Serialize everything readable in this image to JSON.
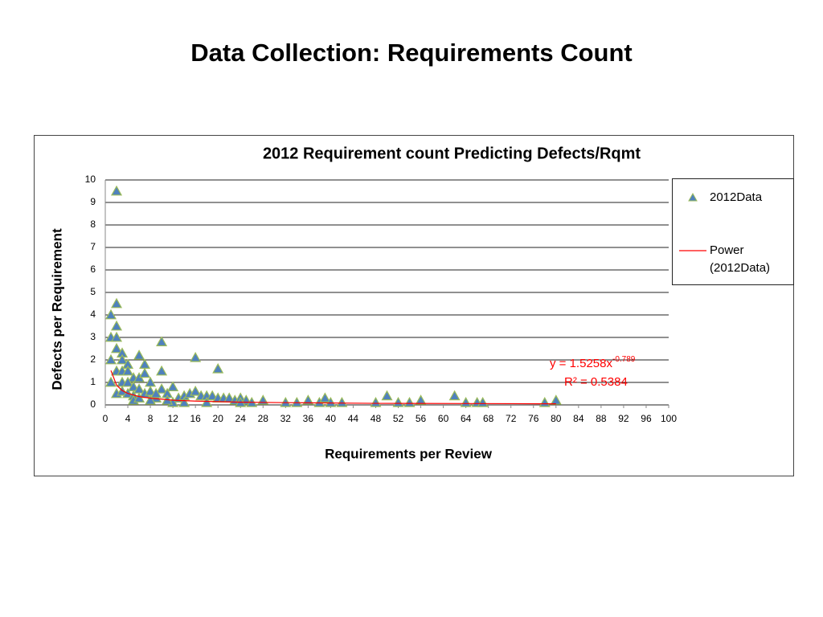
{
  "slide_title": "Data Collection: Requirements Count",
  "chart_data": {
    "type": "scatter",
    "title": "2012 Requirement count Predicting  Defects/Rqmt",
    "x_label": "Requirements per Review",
    "y_label": "Defects per Requirement",
    "xlim": [
      0,
      100
    ],
    "xticks": [
      0,
      4,
      8,
      12,
      16,
      20,
      24,
      28,
      32,
      36,
      40,
      44,
      48,
      52,
      56,
      60,
      64,
      68,
      72,
      76,
      80,
      84,
      88,
      92,
      96,
      100
    ],
    "ylim": [
      0,
      10
    ],
    "yticks": [
      0,
      1,
      2,
      3,
      4,
      5,
      6,
      7,
      8,
      9,
      10
    ],
    "grid": "y",
    "legend": "right",
    "series": [
      {
        "name": "2012Data",
        "type": "scatter",
        "marker": "triangle",
        "color": "#4f81bd",
        "edgecolor": "#9bbb59",
        "x": [
          2,
          1,
          2,
          1,
          2,
          2,
          1,
          2,
          3,
          3,
          4,
          1,
          2,
          3,
          4,
          5,
          3,
          4,
          5,
          2,
          3,
          4,
          5,
          6,
          6,
          7,
          7,
          8,
          6,
          7,
          8,
          9,
          10,
          10,
          10,
          11,
          12,
          9,
          8,
          13,
          14,
          15,
          16,
          16,
          17,
          18,
          19,
          20,
          20,
          21,
          22,
          23,
          24,
          25,
          26,
          28,
          32,
          34,
          36,
          38,
          39,
          40,
          42,
          48,
          50,
          52,
          54,
          56,
          62,
          64,
          66,
          67,
          78,
          80,
          12,
          14,
          18,
          24,
          5,
          6,
          11
        ],
        "values": [
          9.5,
          4,
          4.5,
          3,
          3.5,
          3,
          2,
          2.5,
          2.3,
          2,
          1.8,
          1,
          1.5,
          1.5,
          1.5,
          1.2,
          1,
          1,
          0.8,
          0.5,
          0.6,
          0.5,
          0.4,
          2.2,
          1.2,
          1.8,
          1.4,
          1,
          0.7,
          0.5,
          0.6,
          0.3,
          2.8,
          1.5,
          0.7,
          0.5,
          0.8,
          0.5,
          0.2,
          0.3,
          0.4,
          0.5,
          0.6,
          2.1,
          0.4,
          0.4,
          0.4,
          1.6,
          0.3,
          0.3,
          0.3,
          0.2,
          0.3,
          0.2,
          0.1,
          0.2,
          0.1,
          0.1,
          0.2,
          0.1,
          0.3,
          0.1,
          0.1,
          0.1,
          0.4,
          0.1,
          0.1,
          0.2,
          0.4,
          0.1,
          0.1,
          0.1,
          0.1,
          0.2,
          0.1,
          0.1,
          0.1,
          0.1,
          0.2,
          0.3,
          0.2
        ]
      },
      {
        "name": "Power (2012Data)",
        "type": "line",
        "color": "#ff0000",
        "x": [
          1,
          2,
          3,
          4,
          6,
          8,
          12,
          16,
          24,
          32,
          48,
          64,
          80
        ],
        "values": [
          1.53,
          0.88,
          0.64,
          0.51,
          0.37,
          0.3,
          0.21,
          0.17,
          0.12,
          0.1,
          0.07,
          0.06,
          0.05
        ]
      }
    ],
    "equation": {
      "text": "y = 1.5258x",
      "exponent": "-0.789"
    },
    "r_squared": "R² = 0.5384"
  }
}
